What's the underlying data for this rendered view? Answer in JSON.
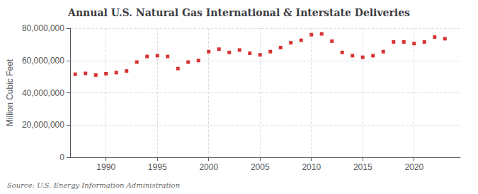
{
  "chart_data": {
    "type": "scatter",
    "title": "Annual U.S. Natural Gas International & Interstate Deliveries",
    "ylabel": "Million Cubic Feet",
    "source": "Source: U.S. Energy Information Administration",
    "x": [
      1987,
      1988,
      1989,
      1990,
      1991,
      1992,
      1993,
      1994,
      1995,
      1996,
      1997,
      1998,
      1999,
      2000,
      2001,
      2002,
      2003,
      2004,
      2005,
      2006,
      2007,
      2008,
      2009,
      2010,
      2011,
      2012,
      2013,
      2014,
      2015,
      2016,
      2017,
      2018,
      2019,
      2020,
      2021,
      2022,
      2023
    ],
    "values": [
      51500000,
      52000000,
      51000000,
      51800000,
      52500000,
      53500000,
      59000000,
      62500000,
      63000000,
      62500000,
      55000000,
      59000000,
      60000000,
      65500000,
      67000000,
      65000000,
      66500000,
      64500000,
      63500000,
      65500000,
      68000000,
      71000000,
      72500000,
      76000000,
      76500000,
      72000000,
      65000000,
      63000000,
      62000000,
      63000000,
      65500000,
      71500000,
      71500000,
      70500000,
      71500000,
      74500000,
      73500000
    ],
    "color": "#cc0000",
    "marker": "square",
    "xlim": [
      1986.5,
      2024.5
    ],
    "xticks": [
      1990,
      1995,
      2000,
      2005,
      2010,
      2015,
      2020
    ],
    "ylim": [
      0,
      80000000
    ],
    "yticks": [
      0,
      {
        "value": 20000000,
        "label": "20,000,000"
      },
      {
        "value": 40000000,
        "label": "40,000,000"
      },
      {
        "value": 60000000,
        "label": "60,000,000"
      },
      {
        "value": 80000000,
        "label": "80,000,000"
      }
    ],
    "grid": true
  }
}
